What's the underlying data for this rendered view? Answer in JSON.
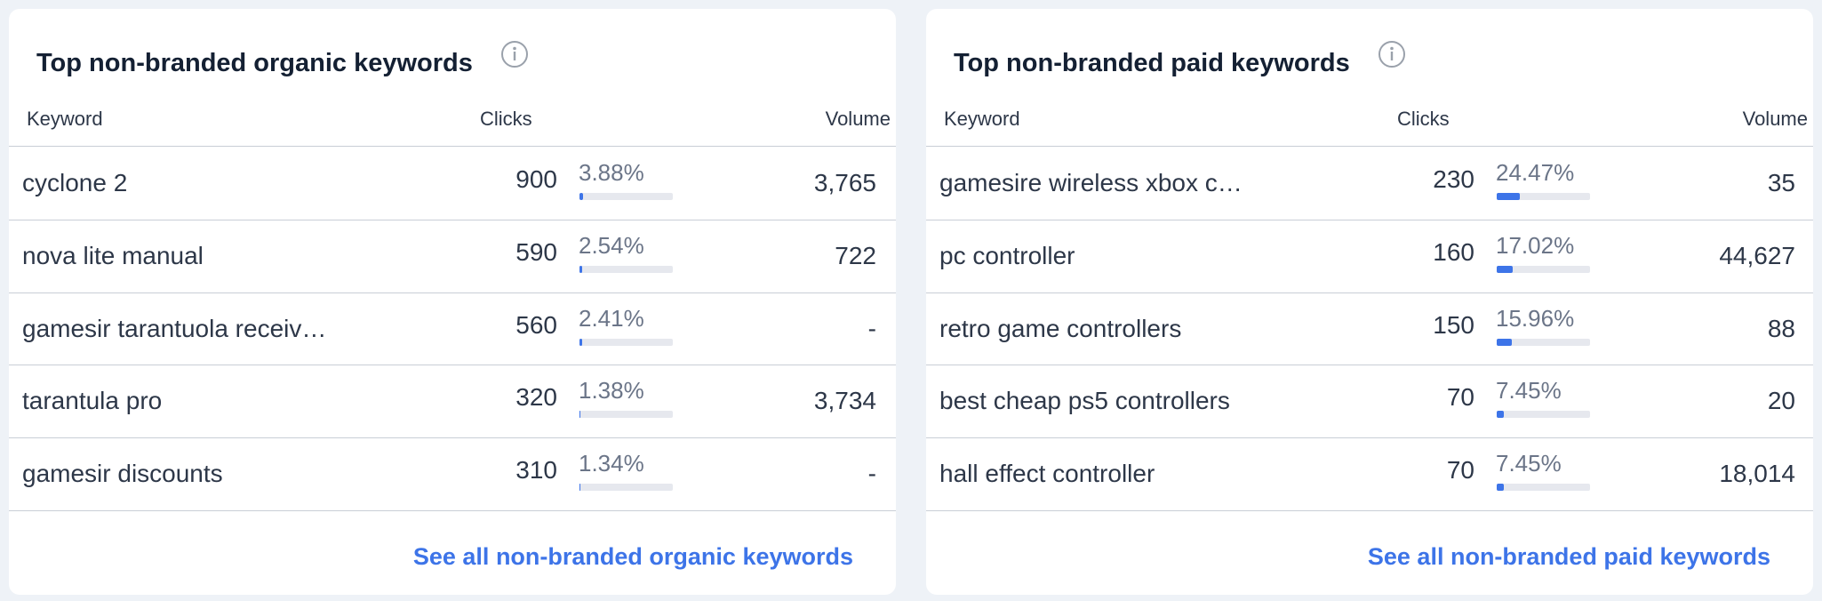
{
  "panels": [
    {
      "title": "Top non-branded organic keywords",
      "headers": [
        "Keyword",
        "Clicks",
        "Volume"
      ],
      "rows": [
        {
          "keyword": "cyclone 2",
          "clicks": 900,
          "share": {
            "value": 3.88,
            "label": "3.88%"
          },
          "volume": "3,765"
        },
        {
          "keyword": "nova lite manual",
          "clicks": 590,
          "share": {
            "value": 2.54,
            "label": "2.54%"
          },
          "volume": "722"
        },
        {
          "keyword": "gamesir tarantuola receiv…",
          "clicks": 560,
          "share": {
            "value": 2.41,
            "label": "2.41%"
          },
          "volume": "-"
        },
        {
          "keyword": "tarantula pro",
          "clicks": 320,
          "share": {
            "value": 1.38,
            "label": "1.38%"
          },
          "volume": "3,734"
        },
        {
          "keyword": "gamesir discounts",
          "clicks": 310,
          "share": {
            "value": 1.34,
            "label": "1.34%"
          },
          "volume": "-"
        }
      ],
      "link": "See all non-branded organic keywords"
    },
    {
      "title": "Top non-branded paid keywords",
      "headers": [
        "Keyword",
        "Clicks",
        "Volume"
      ],
      "rows": [
        {
          "keyword": "gamesire wireless xbox c…",
          "clicks": 230,
          "share": {
            "value": 24.47,
            "label": "24.47%"
          },
          "volume": "35"
        },
        {
          "keyword": "pc controller",
          "clicks": 160,
          "share": {
            "value": 17.02,
            "label": "17.02%"
          },
          "volume": "44,627"
        },
        {
          "keyword": "retro game controllers",
          "clicks": 150,
          "share": {
            "value": 15.96,
            "label": "15.96%"
          },
          "volume": "88"
        },
        {
          "keyword": "best cheap ps5 controllers",
          "clicks": 70,
          "share": {
            "value": 7.45,
            "label": "7.45%"
          },
          "volume": "20"
        },
        {
          "keyword": "hall effect controller",
          "clicks": 70,
          "share": {
            "value": 7.45,
            "label": "7.45%"
          },
          "volume": "18,014"
        }
      ],
      "link": "See all non-branded paid keywords"
    }
  ]
}
